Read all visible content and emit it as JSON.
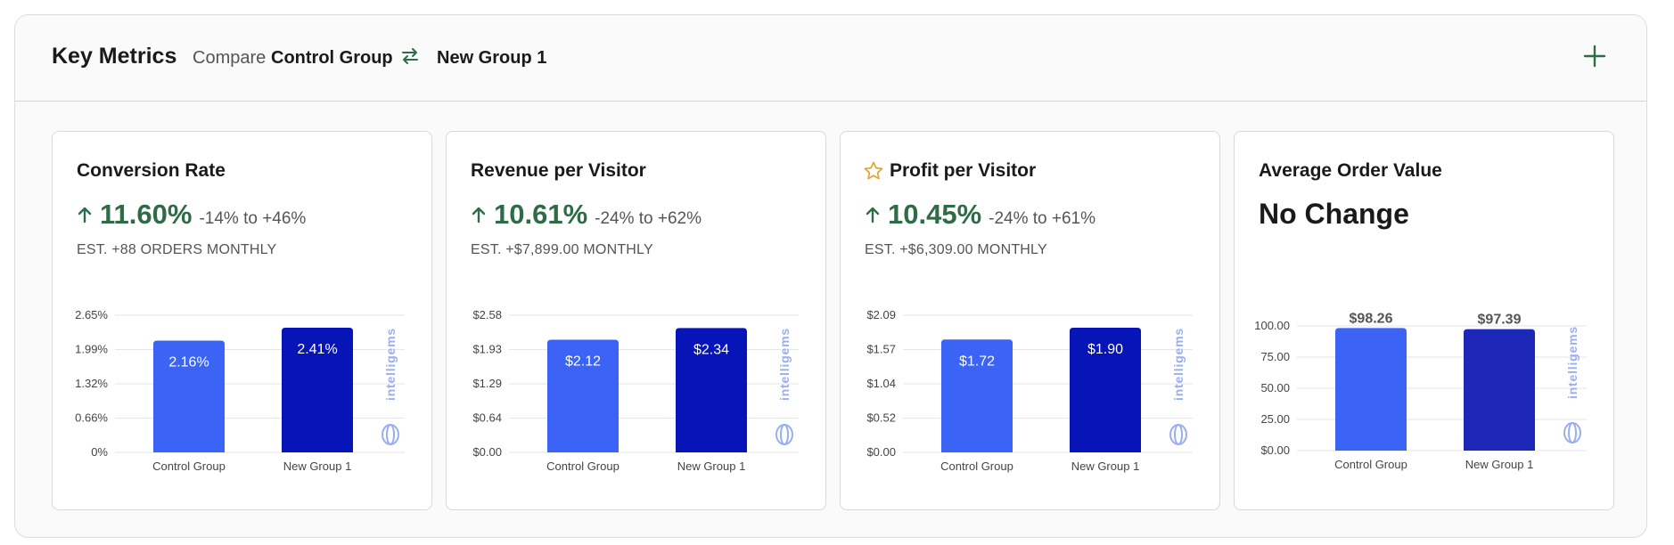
{
  "header": {
    "title": "Key Metrics",
    "compare_label": "Compare",
    "group_a": "Control Group",
    "group_b": "New Group 1"
  },
  "colors": {
    "positive": "#2f6b46",
    "control_bar": "#3b63f5",
    "variant_bar": "#0714b8",
    "aov_variant_bar": "#1e28b8",
    "watermark": "#9aaef0",
    "star": "#e0a83a"
  },
  "icons": [
    "swap-arrows-icon",
    "plus-icon",
    "arrow-up-icon",
    "star-icon",
    "intelligems-logo-icon"
  ],
  "watermark_text": "intelligems",
  "cards": [
    {
      "title": "Conversion Rate",
      "starred": false,
      "lift": "11.60%",
      "range": "-14% to +46%",
      "estimate": "EST. +88 ORDERS MONTHLY",
      "chart_data": {
        "type": "bar",
        "categories": [
          "Control Group",
          "New Group 1"
        ],
        "values": [
          2.16,
          2.41
        ],
        "value_labels": [
          "2.16%",
          "2.41%"
        ],
        "yticks": [
          "0%",
          "0.66%",
          "1.32%",
          "1.99%",
          "2.65%"
        ],
        "ylim": [
          0,
          2.65
        ],
        "label_position": "inside"
      }
    },
    {
      "title": "Revenue per Visitor",
      "starred": false,
      "lift": "10.61%",
      "range": "-24% to +62%",
      "estimate": "EST. +$7,899.00 MONTHLY",
      "chart_data": {
        "type": "bar",
        "categories": [
          "Control Group",
          "New Group 1"
        ],
        "values": [
          2.12,
          2.34
        ],
        "value_labels": [
          "$2.12",
          "$2.34"
        ],
        "yticks": [
          "$0.00",
          "$0.64",
          "$1.29",
          "$1.93",
          "$2.58"
        ],
        "ylim": [
          0,
          2.58
        ],
        "label_position": "inside"
      }
    },
    {
      "title": "Profit per Visitor",
      "starred": true,
      "lift": "10.45%",
      "range": "-24% to +61%",
      "estimate": "EST. +$6,309.00 MONTHLY",
      "chart_data": {
        "type": "bar",
        "categories": [
          "Control Group",
          "New Group 1"
        ],
        "values": [
          1.72,
          1.9
        ],
        "value_labels": [
          "$1.72",
          "$1.90"
        ],
        "yticks": [
          "$0.00",
          "$0.52",
          "$1.04",
          "$1.57",
          "$2.09"
        ],
        "ylim": [
          0,
          2.09
        ],
        "label_position": "inside"
      }
    },
    {
      "title": "Average Order Value",
      "starred": false,
      "status": "No Change",
      "chart_data": {
        "type": "bar",
        "categories": [
          "Control Group",
          "New Group 1"
        ],
        "values": [
          98.26,
          97.39
        ],
        "value_labels": [
          "$98.26",
          "$97.39"
        ],
        "yticks": [
          "$0.00",
          "25.00",
          "50.00",
          "75.00",
          "100.00"
        ],
        "ylim": [
          0,
          100
        ],
        "label_position": "above"
      }
    }
  ]
}
